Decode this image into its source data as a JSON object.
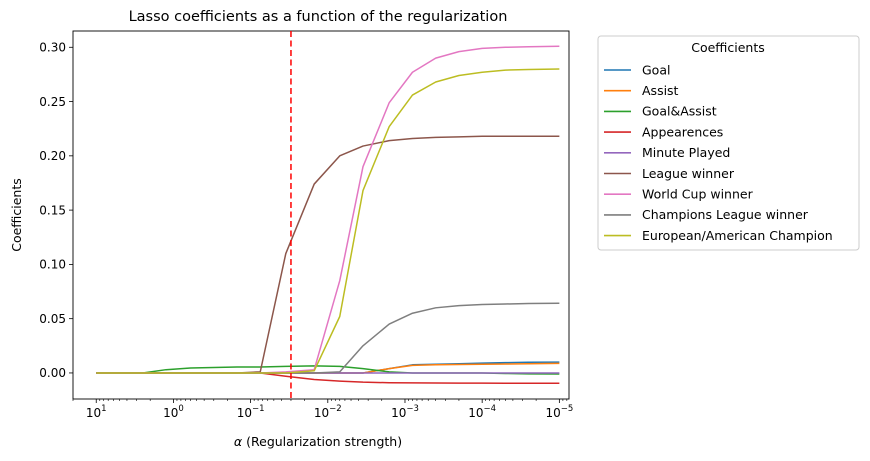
{
  "chart_data": {
    "type": "line",
    "title": "Lasso coefficients as a function of the regularization",
    "xlabel_prefix": "α",
    "xlabel_rest": " (Regularization strength)",
    "ylabel": "Coefficients",
    "x_scale": "log",
    "x_reversed": true,
    "xlim": [
      20,
      7.5e-06
    ],
    "ylim": [
      -0.024,
      0.315
    ],
    "xticks": [
      {
        "value": 10,
        "base": "10",
        "exp": "1"
      },
      {
        "value": 1,
        "base": "10",
        "exp": "0"
      },
      {
        "value": 0.1,
        "base": "10",
        "exp": "−1"
      },
      {
        "value": 0.01,
        "base": "10",
        "exp": "−2"
      },
      {
        "value": 0.001,
        "base": "10",
        "exp": "−3"
      },
      {
        "value": 0.0001,
        "base": "10",
        "exp": "−4"
      },
      {
        "value": 1e-05,
        "base": "10",
        "exp": "−5"
      }
    ],
    "yticks": [
      {
        "value": 0.0,
        "label": "0.00"
      },
      {
        "value": 0.05,
        "label": "0.05"
      },
      {
        "value": 0.1,
        "label": "0.10"
      },
      {
        "value": 0.15,
        "label": "0.15"
      },
      {
        "value": 0.2,
        "label": "0.20"
      },
      {
        "value": 0.25,
        "label": "0.25"
      },
      {
        "value": 0.3,
        "label": "0.30"
      }
    ],
    "x": [
      10,
      5,
      2.5,
      1.25,
      0.6,
      0.3,
      0.15,
      0.075,
      0.035,
      0.015,
      0.007,
      0.0035,
      0.0016,
      0.0008,
      0.0004,
      0.0002,
      0.0001,
      5e-05,
      2.5e-05,
      1e-05
    ],
    "series": [
      {
        "name": "Goal",
        "color": "#1f77b4",
        "values": [
          0,
          0,
          0,
          0,
          0,
          0,
          0,
          0,
          0,
          0,
          0,
          0,
          0.004,
          0.0075,
          0.008,
          0.0085,
          0.009,
          0.0095,
          0.0098,
          0.01
        ]
      },
      {
        "name": "Assist",
        "color": "#ff7f0e",
        "values": [
          0,
          0,
          0,
          0,
          0,
          0,
          0,
          0,
          0,
          0,
          0,
          0,
          0.004,
          0.007,
          0.0075,
          0.0078,
          0.008,
          0.0082,
          0.0085,
          0.0088
        ]
      },
      {
        "name": "Goal&Assist",
        "color": "#2ca02c",
        "values": [
          0,
          0,
          0,
          0.003,
          0.0045,
          0.005,
          0.0055,
          0.0055,
          0.006,
          0.0065,
          0.006,
          0.004,
          0.001,
          0,
          0,
          0,
          0,
          -0.0005,
          -0.0008,
          -0.001
        ]
      },
      {
        "name": "Appearences",
        "color": "#d62728",
        "values": [
          0,
          0,
          0,
          0,
          0,
          0,
          0,
          0,
          -0.003,
          -0.006,
          -0.0075,
          -0.0085,
          -0.009,
          -0.0092,
          -0.0093,
          -0.0094,
          -0.0094,
          -0.0095,
          -0.0095,
          -0.0095
        ]
      },
      {
        "name": "Minute Played",
        "color": "#9467bd",
        "values": [
          0,
          0,
          0,
          0,
          0,
          0,
          0,
          0,
          0,
          0,
          0,
          0,
          0,
          0,
          0,
          0,
          0,
          0,
          0,
          0
        ]
      },
      {
        "name": "League winner",
        "color": "#8c564b",
        "values": [
          0,
          0,
          0,
          0,
          0,
          0,
          0,
          0.001,
          0.11,
          0.174,
          0.2,
          0.209,
          0.214,
          0.216,
          0.217,
          0.2175,
          0.218,
          0.218,
          0.218,
          0.218
        ]
      },
      {
        "name": "World Cup winner",
        "color": "#e377c2",
        "values": [
          0,
          0,
          0,
          0,
          0,
          0,
          0,
          0,
          0.001,
          0.003,
          0.085,
          0.19,
          0.249,
          0.277,
          0.29,
          0.296,
          0.299,
          0.3,
          0.3005,
          0.301
        ]
      },
      {
        "name": "Champions League winner",
        "color": "#7f7f7f",
        "values": [
          0,
          0,
          0,
          0,
          0,
          0,
          0,
          0,
          0,
          0,
          0.001,
          0.025,
          0.045,
          0.055,
          0.06,
          0.062,
          0.063,
          0.0635,
          0.064,
          0.0642
        ]
      },
      {
        "name": "European/American Champion",
        "color": "#bcbd22",
        "values": [
          0,
          0,
          0,
          0,
          0,
          0,
          0,
          0,
          0,
          0.002,
          0.052,
          0.168,
          0.227,
          0.256,
          0.268,
          0.274,
          0.277,
          0.279,
          0.2795,
          0.28
        ]
      }
    ],
    "vline": {
      "x": 0.03,
      "color": "#ff0000",
      "style": "dashed"
    },
    "legend": {
      "title": "Coefficients",
      "placement": "outside-right-top"
    },
    "grid": false
  }
}
